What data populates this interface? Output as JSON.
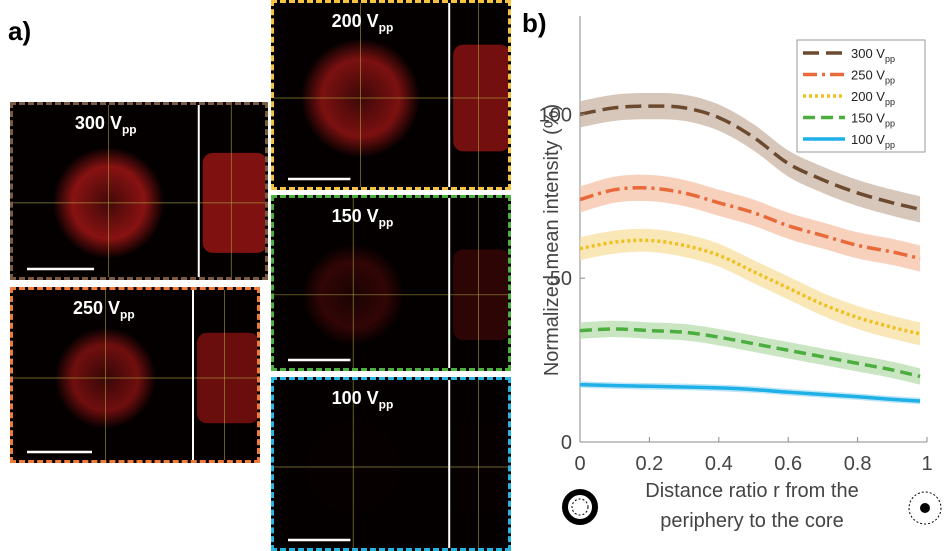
{
  "panel_a": {
    "label": "a)",
    "images": [
      {
        "id": "300",
        "main": "300 V",
        "sub": "pp",
        "border": "#7a5a45",
        "brightness": 0.9,
        "fill": "#c81b1b"
      },
      {
        "id": "250",
        "main": "250 V",
        "sub": "pp",
        "border": "#f07a3a",
        "brightness": 0.8,
        "fill": "#b81818"
      },
      {
        "id": "200",
        "main": "200 V",
        "sub": "pp",
        "border": "#f5c242",
        "brightness": 0.85,
        "fill": "#c01a1a"
      },
      {
        "id": "150",
        "main": "150 V",
        "sub": "pp",
        "border": "#4caf3f",
        "brightness": 0.45,
        "fill": "#8a1010"
      },
      {
        "id": "100",
        "main": "100 V",
        "sub": "pp",
        "border": "#28b4e0",
        "brightness": 0.08,
        "fill": "#2a0505"
      }
    ]
  },
  "panel_b": {
    "label": "b)"
  },
  "chart_data": {
    "type": "line",
    "ylabel": "Normalized mean intensity (%)",
    "xlabel_lines": [
      "Distance ratio r from the",
      "periphery to the core"
    ],
    "xlim": [
      0,
      1
    ],
    "ylim": [
      0,
      130
    ],
    "xticks": [
      "0",
      "0.2",
      "0.4",
      "0.6",
      "0.8",
      "1"
    ],
    "xtick_values": [
      0,
      0.2,
      0.4,
      0.6,
      0.8,
      1
    ],
    "yticks": [
      "0",
      "50",
      "100"
    ],
    "ytick_values": [
      0,
      50,
      100
    ],
    "x": [
      0,
      0.1,
      0.2,
      0.3,
      0.4,
      0.5,
      0.6,
      0.7,
      0.8,
      0.9,
      0.98
    ],
    "series": [
      {
        "name_main": "300 V",
        "name_sub": "pp",
        "color": "#6b4a2f",
        "band": "#c9b3a3",
        "dash": "16,7",
        "values": [
          100,
          102,
          102.5,
          102,
          99,
          93,
          85,
          80,
          76,
          73,
          71
        ],
        "band_width": 4
      },
      {
        "name_main": "250 V",
        "name_sub": "pp",
        "color": "#e8693a",
        "band": "#f6c2a6",
        "dash": "14,5,3,5",
        "values": [
          74,
          77,
          77.5,
          76,
          73,
          70,
          66,
          63,
          60,
          58,
          56
        ],
        "band_width": 4
      },
      {
        "name_main": "200 V",
        "name_sub": "pp",
        "color": "#f0c020",
        "band": "#f8dfa0",
        "dash": "3,3",
        "values": [
          59,
          61,
          61.5,
          60,
          57,
          52,
          47,
          42,
          38,
          35,
          33
        ],
        "band_width": 3.5
      },
      {
        "name_main": "150 V",
        "name_sub": "pp",
        "color": "#4cae3f",
        "band": "#b8dcae",
        "dash": "12,6",
        "values": [
          34,
          34.5,
          34,
          33.5,
          32,
          30,
          28,
          26,
          24,
          22,
          20
        ],
        "band_width": 2.5
      },
      {
        "name_main": "100 V",
        "name_sub": "pp",
        "color": "#1fb0e8",
        "band": "#a9def3",
        "dash": "",
        "values": [
          17.5,
          17.2,
          17,
          16.8,
          16.5,
          16,
          15.2,
          14.5,
          13.8,
          13,
          12.5
        ],
        "band_width": 1
      }
    ]
  }
}
